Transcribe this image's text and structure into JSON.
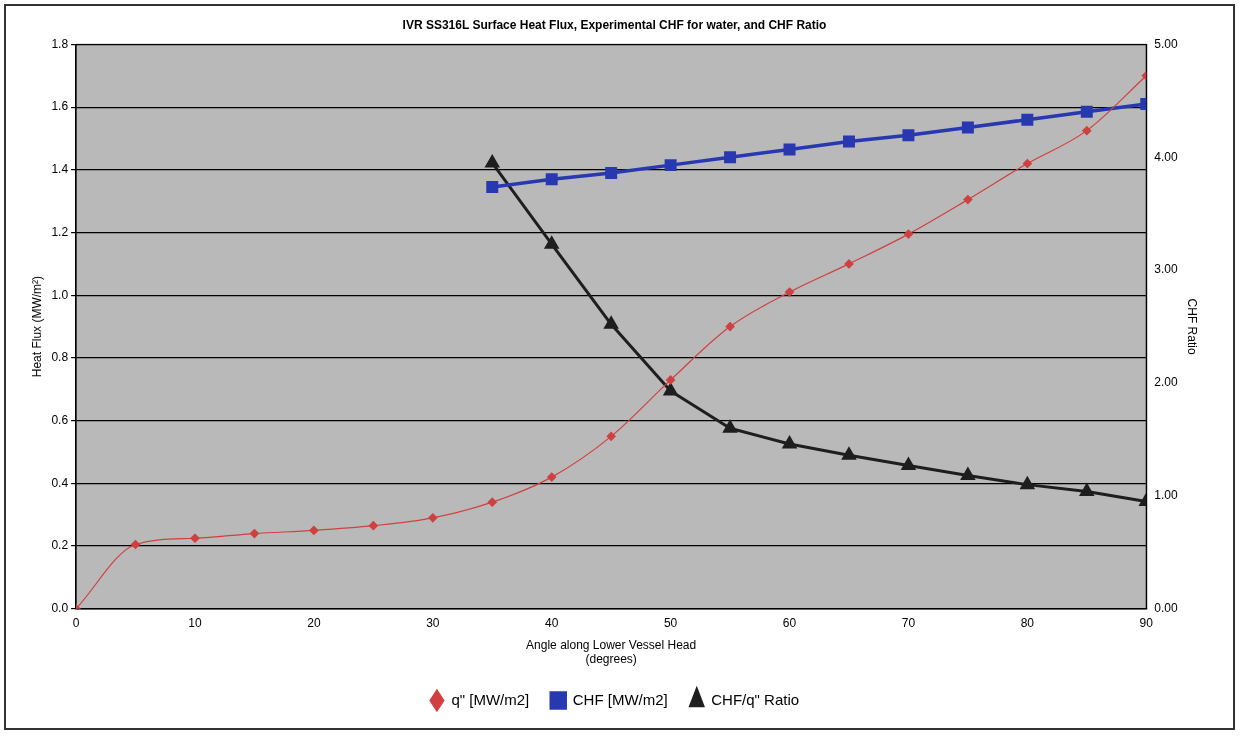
{
  "chart_data": {
    "type": "line",
    "title": "IVR SS316L Surface Heat Flux, Experimental CHF for water, and CHF Ratio",
    "xlabel": "Angle along Lower Vessel Head\n(degrees)",
    "ylabel": "Heat Flux (MW/m²)",
    "y2label": "CHF Ratio",
    "x": [
      0,
      5,
      10,
      15,
      20,
      25,
      30,
      35,
      40,
      45,
      50,
      55,
      60,
      65,
      70,
      75,
      80,
      85,
      90
    ],
    "xlim": [
      0,
      90
    ],
    "xticks": [
      0,
      10,
      20,
      30,
      40,
      50,
      60,
      70,
      80,
      90
    ],
    "ylim": [
      0,
      1.8
    ],
    "yticks": [
      {
        "value": 0,
        "label": "0.0"
      },
      {
        "value": 0.2,
        "label": "0.2"
      },
      {
        "value": 0.4,
        "label": "0.4"
      },
      {
        "value": 0.6,
        "label": "0.6"
      },
      {
        "value": 0.8,
        "label": "0.8"
      },
      {
        "value": 1,
        "label": "1.0"
      },
      {
        "value": 1.2,
        "label": "1.2"
      },
      {
        "value": 1.4,
        "label": "1.4"
      },
      {
        "value": 1.6,
        "label": "1.6"
      },
      {
        "value": 1.8,
        "label": "1.8"
      }
    ],
    "y2lim": [
      0,
      5
    ],
    "y2ticks": [
      {
        "value": 0,
        "label": "0.00"
      },
      {
        "value": 1,
        "label": "1.00"
      },
      {
        "value": 2,
        "label": "2.00"
      },
      {
        "value": 3,
        "label": "3.00"
      },
      {
        "value": 4,
        "label": "4.00"
      },
      {
        "value": 5,
        "label": "5.00"
      }
    ],
    "grid": "y",
    "legend": "bottom",
    "series": [
      {
        "name": "q\" [MW/m2]",
        "color": "#d04040",
        "marker": "diamond",
        "values": [
          0,
          0.205,
          0.225,
          0.24,
          0.25,
          0.265,
          0.29,
          0.34,
          0.42,
          0.55,
          0.73,
          0.9,
          1.01,
          1.1,
          1.195,
          1.305,
          1.42,
          1.525,
          1.7
        ]
      },
      {
        "name": "CHF [MW/m2]",
        "color": "#2838b0",
        "marker": "square",
        "values": [
          null,
          null,
          null,
          null,
          null,
          null,
          null,
          1.345,
          1.37,
          1.39,
          1.415,
          1.44,
          1.465,
          1.49,
          1.51,
          1.535,
          1.56,
          1.585,
          1.61
        ]
      },
      {
        "name": "CHF/q\" Ratio",
        "color": "#1e1e1e",
        "marker": "triangle",
        "axis": "y2",
        "values": [
          null,
          null,
          null,
          null,
          null,
          null,
          null,
          3.95,
          3.23,
          2.52,
          1.93,
          1.6,
          1.46,
          1.36,
          1.27,
          1.18,
          1.1,
          1.04,
          0.95
        ]
      }
    ]
  }
}
